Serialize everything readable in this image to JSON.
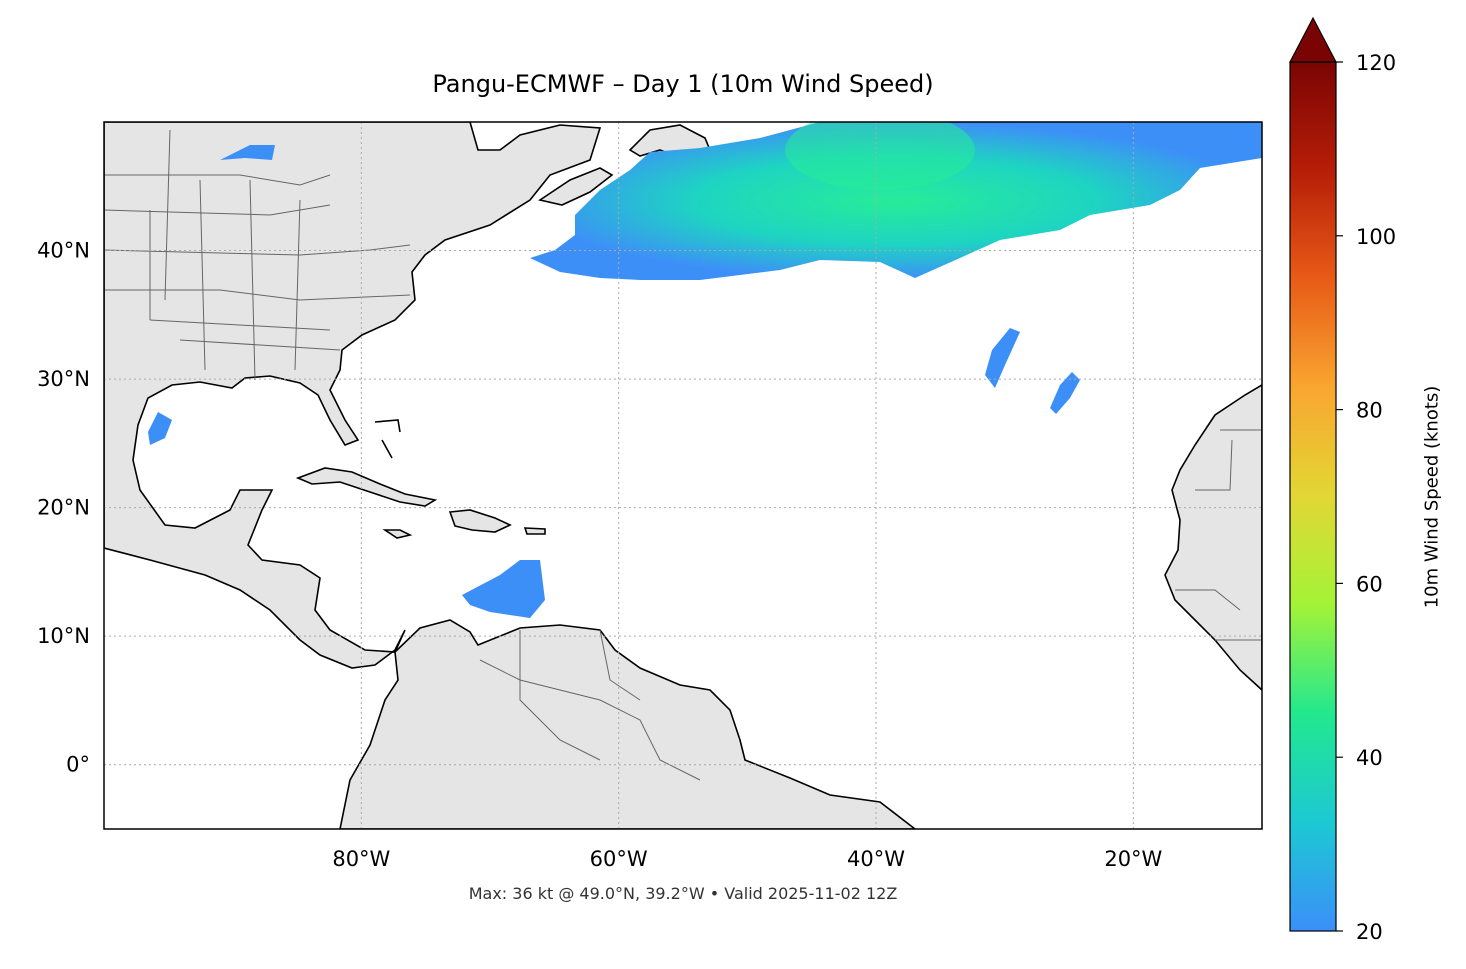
{
  "title": "Pangu-ECMWF – Day 1 (10m Wind Speed)",
  "footer": "Max: 36 kt @ 49.0°N, 39.2°W • Valid 2025-11-02 12Z",
  "map": {
    "extent_lon": [
      -100,
      -10
    ],
    "extent_lat": [
      -5,
      50
    ],
    "lon_ticks": [
      {
        "value": -80,
        "label": "80°W"
      },
      {
        "value": -60,
        "label": "60°W"
      },
      {
        "value": -40,
        "label": "40°W"
      },
      {
        "value": -20,
        "label": "20°W"
      }
    ],
    "lat_ticks": [
      {
        "value": 40,
        "label": "40°N"
      },
      {
        "value": 30,
        "label": "30°N"
      },
      {
        "value": 20,
        "label": "20°N"
      },
      {
        "value": 10,
        "label": "10°N"
      },
      {
        "value": 0,
        "label": "0°"
      }
    ],
    "gridlines": "dotted",
    "land_color": "#e5e5e5",
    "coast_color": "#000000",
    "border_color": "#666666",
    "wind_colors": {
      "low": "#3d8ff8",
      "mid": "#1ed4c2",
      "high": "#27ec98"
    }
  },
  "colorbar": {
    "label": "10m Wind Speed (knots)",
    "min": 20,
    "max": 120,
    "extend": "max",
    "ticks": [
      {
        "value": 20,
        "label": "20"
      },
      {
        "value": 40,
        "label": "40"
      },
      {
        "value": 60,
        "label": "60"
      },
      {
        "value": 80,
        "label": "80"
      },
      {
        "value": 100,
        "label": "100"
      },
      {
        "value": 120,
        "label": "120"
      }
    ],
    "colors": [
      "#3b8ff9",
      "#1cc9d3",
      "#22e88f",
      "#a3f337",
      "#e2d734",
      "#f9a630",
      "#e85b17",
      "#b61e07",
      "#7a0403"
    ]
  }
}
